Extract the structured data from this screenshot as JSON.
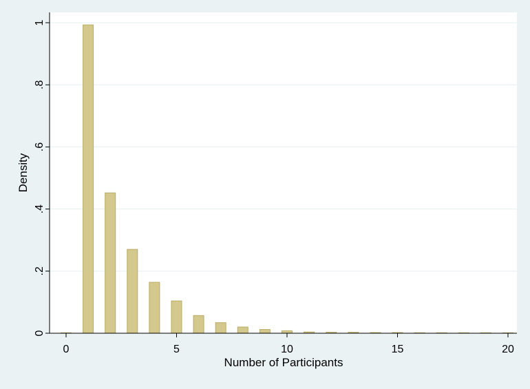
{
  "chart_data": {
    "type": "bar",
    "title": "",
    "xlabel": "Number of Participants",
    "ylabel": "Density",
    "xlim": [
      0,
      20
    ],
    "ylim": [
      0,
      1
    ],
    "x_ticks": [
      0,
      5,
      10,
      15,
      20
    ],
    "x_tick_labels": [
      "0",
      "5",
      "10",
      "15",
      "20"
    ],
    "y_ticks": [
      0,
      0.2,
      0.4,
      0.6,
      0.8,
      1
    ],
    "y_tick_labels": [
      "0",
      ".2",
      ".4",
      ".6",
      ".8",
      "1"
    ],
    "grid": "horizontal",
    "legend": "none",
    "colors": {
      "background": "#eaf2f3",
      "plot_area": "#ffffff",
      "bar_fill": "#d4c98c",
      "bar_stroke": "#b8ab66",
      "grid": "#eaf2f3"
    },
    "x": [
      0,
      1,
      2,
      3,
      4,
      5,
      6,
      7,
      8,
      9,
      10,
      11,
      12,
      13,
      14,
      15,
      16,
      17,
      18,
      19,
      20
    ],
    "values": [
      0.0,
      0.993,
      0.452,
      0.27,
      0.164,
      0.104,
      0.057,
      0.034,
      0.02,
      0.012,
      0.008,
      0.004,
      0.003,
      0.003,
      0.002,
      0.002,
      0.001,
      0.001,
      0.001,
      0.001,
      0.001
    ]
  }
}
